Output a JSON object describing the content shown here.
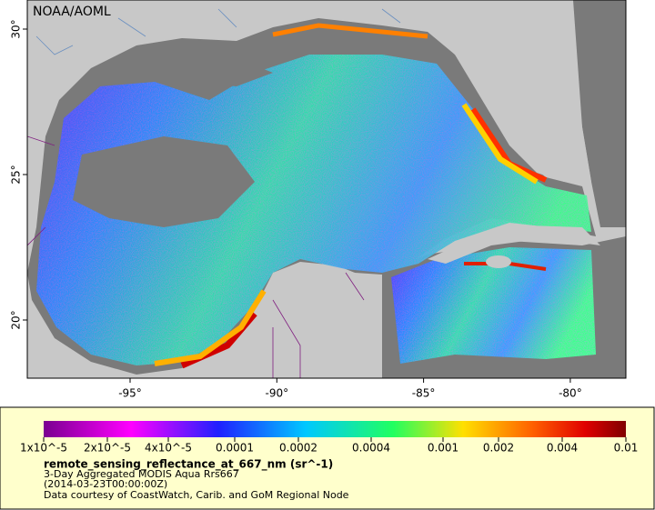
{
  "map": {
    "label": "NOAA/AOML",
    "lon_ticks": [
      "-95°",
      "-90°",
      "-85°",
      "-80°"
    ],
    "lat_ticks": [
      "20°",
      "25°",
      "30°"
    ]
  },
  "legend": {
    "ticks": [
      "1x10^-5",
      "2x10^-5",
      "4x10^-5",
      "0.0001",
      "0.0002",
      "0.0004",
      "0.001",
      "0.002",
      "0.004",
      "0.01"
    ],
    "title": "remote_sensing_reflectance_at_667_nm (sr^-1)",
    "lines": [
      "3-Day Aggregated MODIS Aqua Rrs667",
      "(2014-03-23T00:00:00Z)",
      "Data courtesy of CoastWatch, Carib. and GoM Regional Node"
    ]
  }
}
